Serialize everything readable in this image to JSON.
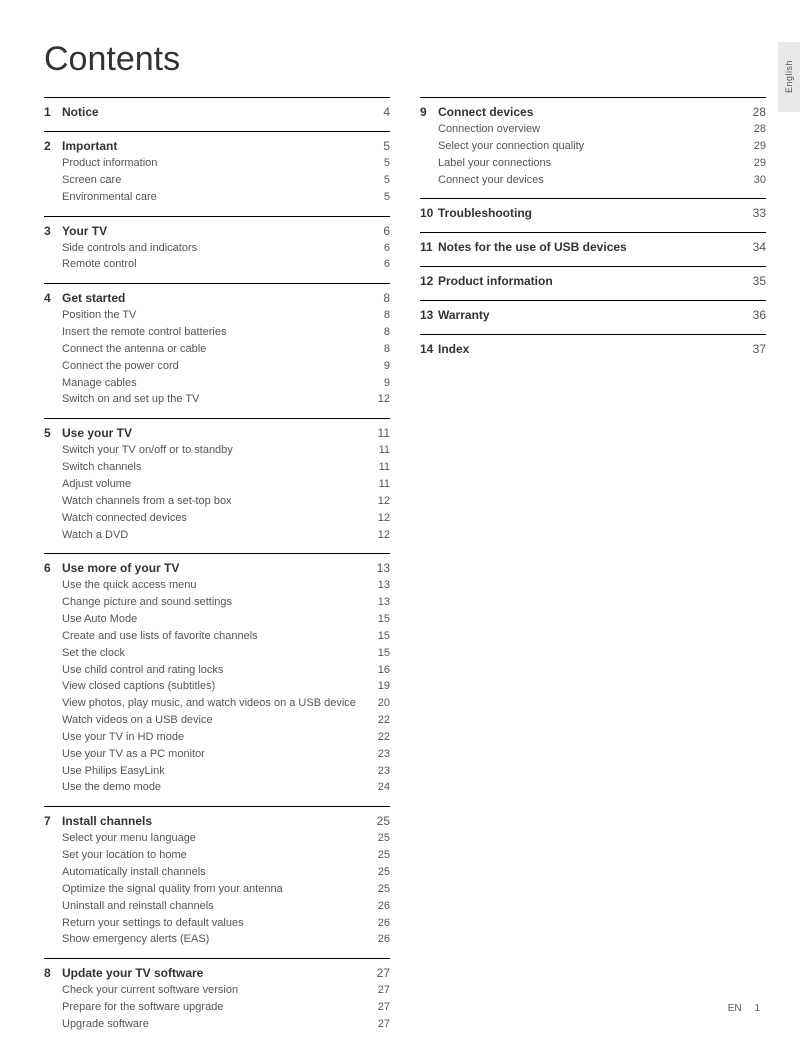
{
  "title": "Contents",
  "language_tab": "English",
  "footer": {
    "lang": "EN",
    "page": "1"
  },
  "left": [
    {
      "num": "1",
      "title": "Notice",
      "page": "4",
      "subs": []
    },
    {
      "num": "2",
      "title": "Important",
      "page": "5",
      "subs": [
        {
          "title": "Product information",
          "page": "5"
        },
        {
          "title": "Screen care",
          "page": "5"
        },
        {
          "title": "Environmental care",
          "page": "5"
        }
      ]
    },
    {
      "num": "3",
      "title": "Your TV",
      "page": "6",
      "subs": [
        {
          "title": "Side controls and indicators",
          "page": "6"
        },
        {
          "title": "Remote control",
          "page": "6"
        }
      ]
    },
    {
      "num": "4",
      "title": "Get started",
      "page": "8",
      "subs": [
        {
          "title": "Position the TV",
          "page": "8"
        },
        {
          "title": "Insert the remote control batteries",
          "page": "8"
        },
        {
          "title": "Connect the antenna or cable",
          "page": "8"
        },
        {
          "title": "Connect the power cord",
          "page": "9"
        },
        {
          "title": "Manage cables",
          "page": "9"
        },
        {
          "title": "Switch on and set up the TV",
          "page": "12"
        }
      ]
    },
    {
      "num": "5",
      "title": "Use your TV",
      "page": "11",
      "subs": [
        {
          "title": "Switch your TV on/off or to standby",
          "page": "11"
        },
        {
          "title": "Switch channels",
          "page": "11"
        },
        {
          "title": "Adjust volume",
          "page": "11"
        },
        {
          "title": "Watch channels from a set-top box",
          "page": "12"
        },
        {
          "title": "Watch connected devices",
          "page": "12"
        },
        {
          "title": "Watch a DVD",
          "page": "12"
        }
      ]
    },
    {
      "num": "6",
      "title": "Use more of your TV",
      "page": "13",
      "subs": [
        {
          "title": "Use the quick access menu",
          "page": "13"
        },
        {
          "title": "Change picture and sound settings",
          "page": "13"
        },
        {
          "title": "Use Auto Mode",
          "page": "15"
        },
        {
          "title": "Create and use lists of favorite channels",
          "page": "15"
        },
        {
          "title": "Set the clock",
          "page": "15"
        },
        {
          "title": "Use child control and rating locks",
          "page": "16"
        },
        {
          "title": "View closed captions (subtitles)",
          "page": "19"
        },
        {
          "title": "View photos, play music, and watch videos on a USB device",
          "page": "20"
        },
        {
          "title": "Watch videos on a USB device",
          "page": "22"
        },
        {
          "title": "Use your TV in HD mode",
          "page": "22"
        },
        {
          "title": "Use your TV as a PC monitor",
          "page": "23"
        },
        {
          "title": "Use Philips EasyLink",
          "page": "23"
        },
        {
          "title": "Use the demo mode",
          "page": "24"
        }
      ]
    },
    {
      "num": "7",
      "title": "Install channels",
      "page": "25",
      "subs": [
        {
          "title": "Select your menu language",
          "page": "25"
        },
        {
          "title": "Set your location to home",
          "page": "25"
        },
        {
          "title": "Automatically install channels",
          "page": "25"
        },
        {
          "title": "Optimize the signal quality from your antenna",
          "page": "25"
        },
        {
          "title": "Uninstall and reinstall channels",
          "page": "26"
        },
        {
          "title": "Return your settings to default values",
          "page": "26"
        },
        {
          "title": "Show emergency alerts (EAS)",
          "page": "26"
        }
      ]
    },
    {
      "num": "8",
      "title": "Update your TV software",
      "page": "27",
      "subs": [
        {
          "title": "Check your current software version",
          "page": "27"
        },
        {
          "title": "Prepare for the software upgrade",
          "page": "27"
        },
        {
          "title": "Upgrade software",
          "page": "27"
        }
      ]
    }
  ],
  "right": [
    {
      "num": "9",
      "title": "Connect devices",
      "page": "28",
      "subs": [
        {
          "title": "Connection overview",
          "page": "28"
        },
        {
          "title": "Select your connection quality",
          "page": "29"
        },
        {
          "title": "Label your connections",
          "page": "29"
        },
        {
          "title": "Connect your devices",
          "page": "30"
        }
      ]
    },
    {
      "num": "10",
      "title": "Troubleshooting",
      "page": "33",
      "subs": []
    },
    {
      "num": "11",
      "title": "Notes for the use of USB devices",
      "page": "34",
      "subs": []
    },
    {
      "num": "12",
      "title": "Product information",
      "page": "35",
      "subs": []
    },
    {
      "num": "13",
      "title": "Warranty",
      "page": "36",
      "subs": []
    },
    {
      "num": "14",
      "title": "Index",
      "page": "37",
      "subs": []
    }
  ]
}
